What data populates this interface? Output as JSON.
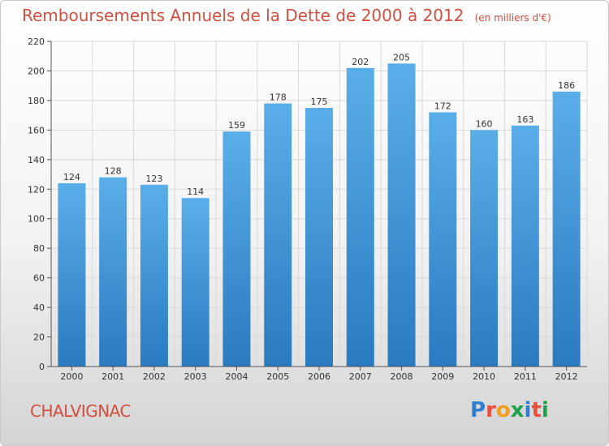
{
  "title": "Remboursements Annuels de la Dette de 2000 à 2012",
  "unit_note": "(en milliers d'€)",
  "place": "CHALVIGNAC",
  "logo": {
    "letters": [
      "P",
      "r",
      "o",
      "x",
      "i",
      "t",
      "i"
    ],
    "colors": [
      "#2f7fd0",
      "#e94f3a",
      "#f0a020",
      "#1ea14b",
      "#2f7fd0",
      "#e94f3a",
      "#1ea14b"
    ]
  },
  "colors": {
    "bar_top": "#5aaee8",
    "bar_bottom": "#2a7ac0",
    "grid": "#d9d9d9",
    "axis": "#555555"
  },
  "chart_data": {
    "type": "bar",
    "title": "Remboursements Annuels de la Dette de 2000 à 2012",
    "xlabel": "",
    "ylabel": "",
    "categories": [
      "2000",
      "2001",
      "2002",
      "2003",
      "2004",
      "2005",
      "2006",
      "2007",
      "2008",
      "2009",
      "2010",
      "2011",
      "2012"
    ],
    "values": [
      124,
      128,
      123,
      114,
      159,
      178,
      175,
      202,
      205,
      172,
      160,
      163,
      186
    ],
    "ylim": [
      0,
      220
    ],
    "yticks": [
      0,
      20,
      40,
      60,
      80,
      100,
      120,
      140,
      160,
      180,
      200,
      220
    ],
    "grid": true,
    "legend": "none"
  }
}
